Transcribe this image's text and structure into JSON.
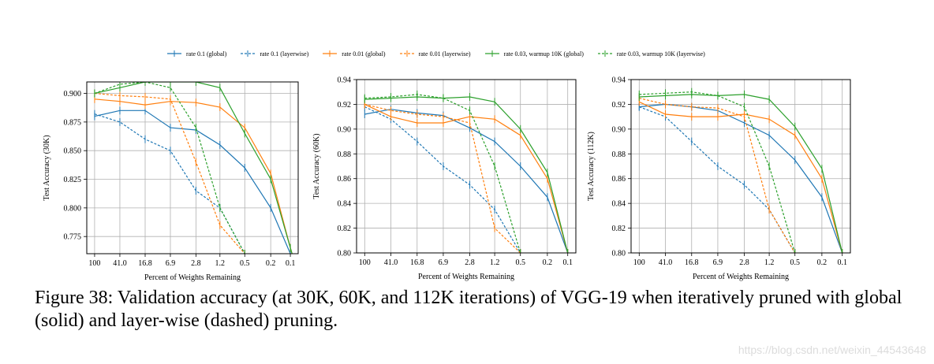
{
  "legend": [
    {
      "name": "rate 0.1 (global)",
      "color": "#1f77b4",
      "dash": false
    },
    {
      "name": "rate 0.1 (layerwise)",
      "color": "#1f77b4",
      "dash": true
    },
    {
      "name": "rate 0.01 (global)",
      "color": "#ff7f0e",
      "dash": false
    },
    {
      "name": "rate 0.01 (layerwise)",
      "color": "#ff7f0e",
      "dash": true
    },
    {
      "name": "rate 0.03, warmup 10K (global)",
      "color": "#2ca02c",
      "dash": false
    },
    {
      "name": "rate 0.03, warmup 10K (layerwise)",
      "color": "#2ca02c",
      "dash": true
    }
  ],
  "caption": "Figure 38: Validation accuracy (at 30K, 60K, and 112K iterations) of VGG-19 when iteratively pruned with global (solid) and layer-wise (dashed) pruning.",
  "watermark": "https://blog.csdn.net/weixin_44543648",
  "chart_data": [
    {
      "type": "line",
      "xlabel": "Percent of Weights Remaining",
      "ylabel": "Test Accuracy (30K)",
      "x": [
        100,
        41.0,
        16.8,
        6.9,
        2.8,
        1.2,
        0.5,
        0.2,
        0.1
      ],
      "x_ticks": [
        "100",
        "41.0",
        "16.8",
        "6.9",
        "2.8",
        "1.2",
        "0.5",
        "0.2",
        "0.1"
      ],
      "x_scale": "log-reversed",
      "ylim": [
        0.76,
        0.91
      ],
      "y_ticks": [
        "0.775",
        "0.800",
        "0.825",
        "0.850",
        "0.875",
        "0.900"
      ],
      "grid": true,
      "series": [
        {
          "name": "rate 0.1 (global)",
          "values": [
            0.88,
            0.885,
            0.885,
            0.87,
            0.868,
            0.855,
            0.835,
            0.8,
            0.76
          ]
        },
        {
          "name": "rate 0.1 (layerwise)",
          "values": [
            0.882,
            0.875,
            0.86,
            0.85,
            0.815,
            0.8,
            0.76,
            null,
            null
          ]
        },
        {
          "name": "rate 0.01 (global)",
          "values": [
            0.895,
            0.893,
            0.89,
            0.893,
            0.892,
            0.888,
            0.87,
            0.83,
            0.765
          ]
        },
        {
          "name": "rate 0.01 (layerwise)",
          "values": [
            0.9,
            0.898,
            0.897,
            0.895,
            0.84,
            0.785,
            0.76,
            null,
            null
          ]
        },
        {
          "name": "rate 0.03, warmup 10K (global)",
          "values": [
            0.9,
            0.905,
            0.91,
            0.91,
            0.91,
            0.905,
            0.865,
            0.825,
            0.765
          ]
        },
        {
          "name": "rate 0.03, warmup 10K (layerwise)",
          "values": [
            0.9,
            0.908,
            0.91,
            0.905,
            0.87,
            0.8,
            0.76,
            null,
            null
          ]
        }
      ]
    },
    {
      "type": "line",
      "xlabel": "Percent of Weights Remaining",
      "ylabel": "Test Accuracy (60K)",
      "x": [
        100,
        41.0,
        16.8,
        6.9,
        2.8,
        1.2,
        0.5,
        0.2,
        0.1
      ],
      "x_ticks": [
        "100",
        "41.0",
        "16.8",
        "6.9",
        "2.8",
        "1.2",
        "0.5",
        "0.2",
        "0.1"
      ],
      "x_scale": "log-reversed",
      "ylim": [
        0.8,
        0.94
      ],
      "y_ticks": [
        "0.80",
        "0.82",
        "0.84",
        "0.86",
        "0.88",
        "0.90",
        "0.92",
        "0.94"
      ],
      "grid": true,
      "series": [
        {
          "name": "rate 0.1 (global)",
          "values": [
            0.912,
            0.916,
            0.913,
            0.911,
            0.901,
            0.89,
            0.87,
            0.845,
            0.8
          ]
        },
        {
          "name": "rate 0.1 (layerwise)",
          "values": [
            0.918,
            0.908,
            0.89,
            0.87,
            0.855,
            0.835,
            0.8,
            null,
            null
          ]
        },
        {
          "name": "rate 0.01 (global)",
          "values": [
            0.92,
            0.91,
            0.905,
            0.905,
            0.91,
            0.908,
            0.895,
            0.86,
            0.8
          ]
        },
        {
          "name": "rate 0.01 (layerwise)",
          "values": [
            0.92,
            0.915,
            0.912,
            0.91,
            0.905,
            0.82,
            0.8,
            null,
            null
          ]
        },
        {
          "name": "rate 0.03, warmup 10K (global)",
          "values": [
            0.924,
            0.925,
            0.926,
            0.925,
            0.926,
            0.922,
            0.9,
            0.865,
            0.8
          ]
        },
        {
          "name": "rate 0.03, warmup 10K (layerwise)",
          "values": [
            0.925,
            0.926,
            0.928,
            0.925,
            0.915,
            0.87,
            0.8,
            null,
            null
          ]
        }
      ]
    },
    {
      "type": "line",
      "xlabel": "Percent of Weights Remaining",
      "ylabel": "Test Accuracy (112K)",
      "x": [
        100,
        41.0,
        16.8,
        6.9,
        2.8,
        1.2,
        0.5,
        0.2,
        0.1
      ],
      "x_ticks": [
        "100",
        "41.0",
        "16.8",
        "6.9",
        "2.8",
        "1.2",
        "0.5",
        "0.2",
        "0.1"
      ],
      "x_scale": "log-reversed",
      "ylim": [
        0.8,
        0.94
      ],
      "y_ticks": [
        "0.80",
        "0.82",
        "0.84",
        "0.86",
        "0.88",
        "0.90",
        "0.92",
        "0.94"
      ],
      "grid": true,
      "series": [
        {
          "name": "rate 0.1 (global)",
          "values": [
            0.918,
            0.92,
            0.918,
            0.915,
            0.905,
            0.895,
            0.875,
            0.845,
            0.8
          ]
        },
        {
          "name": "rate 0.1 (layerwise)",
          "values": [
            0.918,
            0.91,
            0.89,
            0.87,
            0.855,
            0.835,
            0.8,
            null,
            null
          ]
        },
        {
          "name": "rate 0.01 (global)",
          "values": [
            0.922,
            0.912,
            0.91,
            0.91,
            0.912,
            0.908,
            0.895,
            0.86,
            0.8
          ]
        },
        {
          "name": "rate 0.01 (layerwise)",
          "values": [
            0.925,
            0.92,
            0.918,
            0.917,
            0.91,
            0.835,
            0.8,
            null,
            null
          ]
        },
        {
          "name": "rate 0.03, warmup 10K (global)",
          "values": [
            0.926,
            0.927,
            0.928,
            0.927,
            0.928,
            0.924,
            0.902,
            0.868,
            0.8
          ]
        },
        {
          "name": "rate 0.03, warmup 10K (layerwise)",
          "values": [
            0.928,
            0.929,
            0.93,
            0.927,
            0.918,
            0.87,
            0.8,
            null,
            null
          ]
        }
      ]
    }
  ]
}
